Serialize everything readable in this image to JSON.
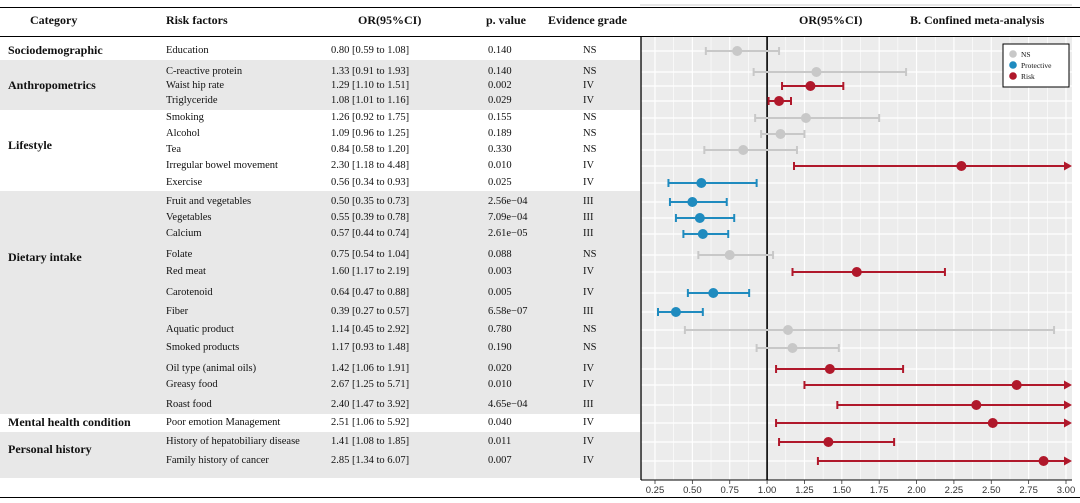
{
  "headers": {
    "category": "Category",
    "risk_factors": "Risk factors",
    "or_ci": "OR(95%CI)",
    "p_value": "p. value",
    "evidence_grade": "Evidence grade",
    "plot_title": "OR(95%CI)",
    "panel_label": "B. Confined meta-analysis"
  },
  "categories": [
    {
      "label": "Sociodemographic",
      "shaded": false
    },
    {
      "label": "Anthropometrics",
      "shaded": true
    },
    {
      "label": "Lifestyle",
      "shaded": false
    },
    {
      "label": "Dietary intake",
      "shaded": true
    },
    {
      "label": "Mental health condition",
      "shaded": false
    },
    {
      "label": "Personal history",
      "shaded": true
    }
  ],
  "rows": [
    {
      "factor": "Education",
      "or_ci": "0.80 [0.59 to 1.08]",
      "p": "0.140",
      "grade": "NS"
    },
    {
      "factor": "C-reactive protein",
      "or_ci": "1.33 [0.91 to 1.93]",
      "p": "0.140",
      "grade": "NS"
    },
    {
      "factor": "Waist hip rate",
      "or_ci": "1.29 [1.10 to 1.51]",
      "p": "0.002",
      "grade": "IV"
    },
    {
      "factor": "Triglyceride",
      "or_ci": "1.08 [1.01 to 1.16]",
      "p": "0.029",
      "grade": "IV"
    },
    {
      "factor": "Smoking",
      "or_ci": "1.26 [0.92 to 1.75]",
      "p": "0.155",
      "grade": "NS"
    },
    {
      "factor": "Alcohol",
      "or_ci": "1.09 [0.96 to 1.25]",
      "p": "0.189",
      "grade": "NS"
    },
    {
      "factor": "Tea",
      "or_ci": "0.84 [0.58 to 1.20]",
      "p": "0.330",
      "grade": "NS"
    },
    {
      "factor": "Irregular bowel movement",
      "or_ci": "2.30 [1.18 to 4.48]",
      "p": "0.010",
      "grade": "IV"
    },
    {
      "factor": "Exercise",
      "or_ci": "0.56 [0.34 to 0.93]",
      "p": "0.025",
      "grade": "IV"
    },
    {
      "factor": "Fruit and vegetables",
      "or_ci": "0.50 [0.35 to 0.73]",
      "p": "2.56e−04",
      "grade": "III"
    },
    {
      "factor": "Vegetables",
      "or_ci": "0.55 [0.39 to 0.78]",
      "p": "7.09e−04",
      "grade": "III"
    },
    {
      "factor": "Calcium",
      "or_ci": "0.57 [0.44 to 0.74]",
      "p": "2.61e−05",
      "grade": "III"
    },
    {
      "factor": "Folate",
      "or_ci": "0.75 [0.54 to 1.04]",
      "p": "0.088",
      "grade": "NS"
    },
    {
      "factor": "Red meat",
      "or_ci": "1.60 [1.17 to 2.19]",
      "p": "0.003",
      "grade": "IV"
    },
    {
      "factor": "Carotenoid",
      "or_ci": "0.64 [0.47 to 0.88]",
      "p": "0.005",
      "grade": "IV"
    },
    {
      "factor": "Fiber",
      "or_ci": "0.39 [0.27 to 0.57]",
      "p": "6.58e−07",
      "grade": "III"
    },
    {
      "factor": "Aquatic product",
      "or_ci": "1.14 [0.45 to 2.92]",
      "p": "0.780",
      "grade": "NS"
    },
    {
      "factor": "Smoked products",
      "or_ci": "1.17 [0.93 to 1.48]",
      "p": "0.190",
      "grade": "NS"
    },
    {
      "factor": "Oil type (animal oils)",
      "or_ci": "1.42 [1.06 to 1.91]",
      "p": "0.020",
      "grade": "IV"
    },
    {
      "factor": "Greasy food",
      "or_ci": "2.67 [1.25 to 5.71]",
      "p": "0.010",
      "grade": "IV"
    },
    {
      "factor": "Roast food",
      "or_ci": "2.40 [1.47 to 3.92]",
      "p": "4.65e−04",
      "grade": "III"
    },
    {
      "factor": "Poor emotion Management",
      "or_ci": "2.51 [1.06 to 5.92]",
      "p": "0.040",
      "grade": "IV"
    },
    {
      "factor": "History of hepatobiliary disease",
      "or_ci": "1.41 [1.08 to 1.85]",
      "p": "0.011",
      "grade": "IV"
    },
    {
      "factor": "Family history of cancer",
      "or_ci": "2.85 [1.34 to 6.07]",
      "p": "0.007",
      "grade": "IV"
    }
  ],
  "chart_data": {
    "type": "forest",
    "title": "OR(95%CI)",
    "subtitle": "B. Confined meta-analysis",
    "xlim": [
      0.25,
      3.0
    ],
    "xticks": [
      0.25,
      0.5,
      0.75,
      1.0,
      1.25,
      1.5,
      1.75,
      2.0,
      2.25,
      2.5,
      2.75,
      3.0
    ],
    "xtick_labels": [
      "0.25",
      "0.50",
      "0.75",
      "1.00",
      "1.25",
      "1.50",
      "1.75",
      "2.00",
      "2.25",
      "2.50",
      "2.75",
      "3.00"
    ],
    "reference_line": 1.0,
    "legend": {
      "position": "top-right",
      "entries": [
        {
          "name": "NS",
          "color": "#c8c8c8"
        },
        {
          "name": "Protective",
          "color": "#1f8bbf"
        },
        {
          "name": "Risk",
          "color": "#b0182b"
        }
      ]
    },
    "points": [
      {
        "name": "Education",
        "or": 0.8,
        "lo": 0.59,
        "hi": 1.08,
        "group": "NS"
      },
      {
        "name": "C-reactive protein",
        "or": 1.33,
        "lo": 0.91,
        "hi": 1.93,
        "group": "NS"
      },
      {
        "name": "Waist hip rate",
        "or": 1.29,
        "lo": 1.1,
        "hi": 1.51,
        "group": "Risk"
      },
      {
        "name": "Triglyceride",
        "or": 1.08,
        "lo": 1.01,
        "hi": 1.16,
        "group": "Risk"
      },
      {
        "name": "Smoking",
        "or": 1.26,
        "lo": 0.92,
        "hi": 1.75,
        "group": "NS"
      },
      {
        "name": "Alcohol",
        "or": 1.09,
        "lo": 0.96,
        "hi": 1.25,
        "group": "NS"
      },
      {
        "name": "Tea",
        "or": 0.84,
        "lo": 0.58,
        "hi": 1.2,
        "group": "NS"
      },
      {
        "name": "Irregular bowel movement",
        "or": 2.3,
        "lo": 1.18,
        "hi": 4.48,
        "group": "Risk"
      },
      {
        "name": "Exercise",
        "or": 0.56,
        "lo": 0.34,
        "hi": 0.93,
        "group": "Protective"
      },
      {
        "name": "Fruit and vegetables",
        "or": 0.5,
        "lo": 0.35,
        "hi": 0.73,
        "group": "Protective"
      },
      {
        "name": "Vegetables",
        "or": 0.55,
        "lo": 0.39,
        "hi": 0.78,
        "group": "Protective"
      },
      {
        "name": "Calcium",
        "or": 0.57,
        "lo": 0.44,
        "hi": 0.74,
        "group": "Protective"
      },
      {
        "name": "Folate",
        "or": 0.75,
        "lo": 0.54,
        "hi": 1.04,
        "group": "NS"
      },
      {
        "name": "Red meat",
        "or": 1.6,
        "lo": 1.17,
        "hi": 2.19,
        "group": "Risk"
      },
      {
        "name": "Carotenoid",
        "or": 0.64,
        "lo": 0.47,
        "hi": 0.88,
        "group": "Protective"
      },
      {
        "name": "Fiber",
        "or": 0.39,
        "lo": 0.27,
        "hi": 0.57,
        "group": "Protective"
      },
      {
        "name": "Aquatic product",
        "or": 1.14,
        "lo": 0.45,
        "hi": 2.92,
        "group": "NS"
      },
      {
        "name": "Smoked products",
        "or": 1.17,
        "lo": 0.93,
        "hi": 1.48,
        "group": "NS"
      },
      {
        "name": "Oil type (animal oils)",
        "or": 1.42,
        "lo": 1.06,
        "hi": 1.91,
        "group": "Risk"
      },
      {
        "name": "Greasy food",
        "or": 2.67,
        "lo": 1.25,
        "hi": 5.71,
        "group": "Risk"
      },
      {
        "name": "Roast food",
        "or": 2.4,
        "lo": 1.47,
        "hi": 3.92,
        "group": "Risk"
      },
      {
        "name": "Poor emotion Management",
        "or": 2.51,
        "lo": 1.06,
        "hi": 5.92,
        "group": "Risk"
      },
      {
        "name": "History of hepatobiliary disease",
        "or": 1.41,
        "lo": 1.08,
        "hi": 1.85,
        "group": "Risk"
      },
      {
        "name": "Family history of cancer",
        "or": 2.85,
        "lo": 1.34,
        "hi": 6.07,
        "group": "Risk"
      }
    ]
  }
}
